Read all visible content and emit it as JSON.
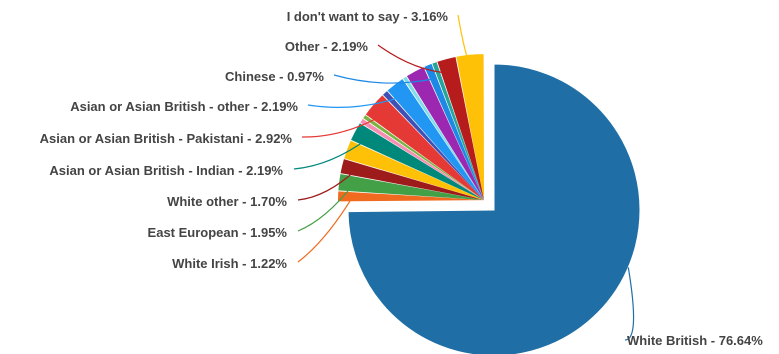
{
  "chart_data": {
    "type": "pie",
    "title": "",
    "slices": [
      {
        "label": "White British - 76.64%",
        "value": 76.64,
        "color": "#1F6FA6"
      },
      {
        "label": "White Irish - 1.22%",
        "value": 1.22,
        "color": "#F06A1F"
      },
      {
        "label": "East European - 1.95%",
        "value": 1.95,
        "color": "#43A047"
      },
      {
        "label": "White other - 1.70%",
        "value": 1.7,
        "color": "#9E1B1B"
      },
      {
        "label": "",
        "value": 2.2,
        "color": "#FFC107"
      },
      {
        "label": "Asian or Asian British - Indian - 2.19%",
        "value": 2.19,
        "color": "#00897B"
      },
      {
        "label": "",
        "value": 0.6,
        "color": "#F48FB1"
      },
      {
        "label": "",
        "value": 0.5,
        "color": "#7CB342"
      },
      {
        "label": "Asian or Asian British - Pakistani - 2.92%",
        "value": 2.92,
        "color": "#E53935"
      },
      {
        "label": "",
        "value": 0.7,
        "color": "#3F51B5"
      },
      {
        "label": "Asian or Asian British - other - 2.19%",
        "value": 2.19,
        "color": "#2196F3"
      },
      {
        "label": "",
        "value": 0.5,
        "color": "#80DEEA"
      },
      {
        "label": "",
        "value": 2.2,
        "color": "#9C27B0"
      },
      {
        "label": "Chinese - 0.97%",
        "value": 0.97,
        "color": "#1E88E5"
      },
      {
        "label": "",
        "value": 0.6,
        "color": "#26A69A"
      },
      {
        "label": "Other - 2.19%",
        "value": 2.19,
        "color": "#B71C1C"
      },
      {
        "label": "I don't want to say - 3.16%",
        "value": 3.16,
        "color": "#FFC107"
      }
    ]
  }
}
